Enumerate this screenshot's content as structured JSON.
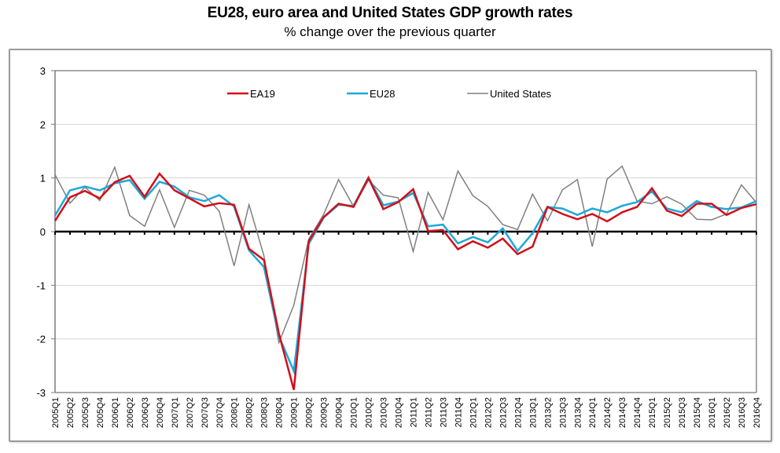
{
  "chart_data": {
    "type": "line",
    "title": "EU28, euro area and United States GDP growth rates",
    "subtitle": "% change over the previous quarter",
    "xlabel": "",
    "ylabel": "",
    "ylim": [
      -3,
      3
    ],
    "yticks": [
      3,
      2,
      1,
      0,
      -1,
      -2,
      -3
    ],
    "grid": true,
    "legend_position": "top",
    "categories": [
      "2005Q1",
      "2005Q2",
      "2005Q3",
      "2005Q4",
      "2006Q1",
      "2006Q2",
      "2006Q3",
      "2006Q4",
      "2007Q1",
      "2007Q2",
      "2007Q3",
      "2007Q4",
      "2008Q1",
      "2008Q2",
      "2008Q3",
      "2008Q4",
      "2009Q1",
      "2009Q2",
      "2009Q3",
      "2009Q4",
      "2010Q1",
      "2010Q2",
      "2010Q3",
      "2010Q4",
      "2011Q1",
      "2011Q2",
      "2011Q3",
      "2011Q4",
      "2012Q1",
      "2012Q2",
      "2012Q3",
      "2012Q4",
      "2013Q1",
      "2013Q2",
      "2013Q3",
      "2013Q4",
      "2014Q1",
      "2014Q2",
      "2014Q3",
      "2014Q4",
      "2015Q1",
      "2015Q2",
      "2015Q3",
      "2015Q4",
      "2016Q1",
      "2016Q2",
      "2016Q3",
      "2016Q4"
    ],
    "series": [
      {
        "name": "EA19",
        "color": "#d0101a",
        "values": [
          0.2,
          0.64,
          0.76,
          0.62,
          0.92,
          1.04,
          0.65,
          1.08,
          0.77,
          0.62,
          0.47,
          0.53,
          0.5,
          -0.32,
          -0.53,
          -1.9,
          -2.95,
          -0.18,
          0.27,
          0.52,
          0.46,
          1.0,
          0.42,
          0.55,
          0.79,
          0.01,
          0.03,
          -0.33,
          -0.18,
          -0.3,
          -0.13,
          -0.42,
          -0.28,
          0.46,
          0.33,
          0.23,
          0.33,
          0.19,
          0.36,
          0.46,
          0.81,
          0.39,
          0.29,
          0.52,
          0.52,
          0.31,
          0.44,
          0.51
        ]
      },
      {
        "name": "EU28",
        "color": "#1ea7d8",
        "values": [
          0.3,
          0.77,
          0.84,
          0.77,
          0.9,
          0.96,
          0.61,
          0.93,
          0.84,
          0.64,
          0.57,
          0.68,
          0.47,
          -0.35,
          -0.66,
          -1.95,
          -2.6,
          -0.23,
          0.26,
          0.5,
          0.48,
          1.01,
          0.49,
          0.56,
          0.72,
          0.1,
          0.13,
          -0.22,
          -0.1,
          -0.2,
          0.06,
          -0.36,
          -0.03,
          0.46,
          0.43,
          0.31,
          0.43,
          0.36,
          0.48,
          0.55,
          0.75,
          0.43,
          0.36,
          0.57,
          0.46,
          0.42,
          0.45,
          0.57
        ]
      },
      {
        "name": "United States",
        "color": "#808080",
        "values": [
          1.06,
          0.53,
          0.83,
          0.58,
          1.2,
          0.3,
          0.1,
          0.78,
          0.08,
          0.77,
          0.68,
          0.38,
          -0.64,
          0.5,
          -0.45,
          -2.07,
          -1.37,
          -0.14,
          0.32,
          0.97,
          0.47,
          0.96,
          0.68,
          0.63,
          -0.37,
          0.73,
          0.22,
          1.13,
          0.67,
          0.47,
          0.13,
          0.04,
          0.7,
          0.2,
          0.78,
          0.97,
          -0.28,
          0.98,
          1.22,
          0.57,
          0.52,
          0.65,
          0.51,
          0.23,
          0.22,
          0.33,
          0.87,
          0.54
        ]
      }
    ]
  }
}
